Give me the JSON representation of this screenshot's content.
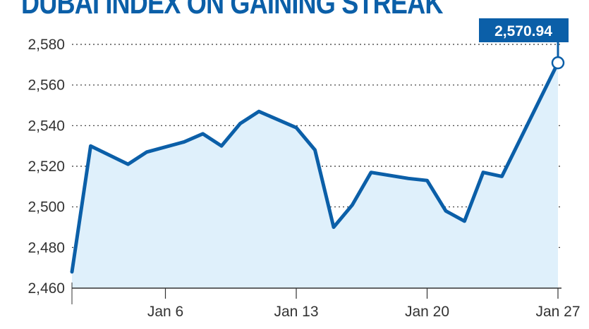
{
  "title": "DUBAI INDEX ON GAINING STREAK",
  "colors": {
    "line": "#0b5fa8",
    "fill": "#dff0fb",
    "grid": "#333333",
    "callout_bg": "#0b5fa8",
    "callout_text": "#ffffff"
  },
  "callout": {
    "label": "2,570.94"
  },
  "chart_data": {
    "type": "area",
    "title": "DUBAI INDEX ON GAINING STREAK",
    "xlabel": "",
    "ylabel": "",
    "ylim": [
      2460,
      2580
    ],
    "yticks": [
      2460,
      2480,
      2500,
      2520,
      2540,
      2560,
      2580
    ],
    "ytick_labels": [
      "2,460",
      "2,480",
      "2,500",
      "2,520",
      "2,540",
      "2,560",
      "2,580"
    ],
    "xticks": [
      6,
      13,
      20,
      27
    ],
    "xtick_labels": [
      "Jan 6",
      "Jan 13",
      "Jan 20",
      "Jan 27"
    ],
    "grid": "horizontal dotted",
    "series": [
      {
        "x": [
          1,
          2,
          4,
          5,
          7,
          8,
          9,
          10,
          11,
          13,
          14,
          15,
          16,
          17,
          19,
          20,
          21,
          22,
          23,
          24,
          27
        ],
        "values": [
          2468,
          2530,
          2521,
          2527,
          2532,
          2536,
          2530,
          2541,
          2547,
          2539,
          2528,
          2490,
          2501,
          2517,
          2514,
          2513,
          2498,
          2493,
          2517,
          2515,
          2570.94
        ]
      }
    ]
  }
}
